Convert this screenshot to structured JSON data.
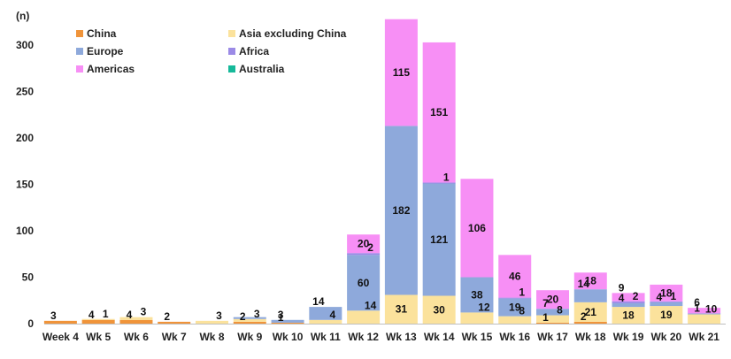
{
  "chart_data": {
    "type": "bar",
    "stacked": true,
    "title": "",
    "xlabel": "",
    "ylabel": "(n)",
    "ylim": [
      0,
      320
    ],
    "yticks": [
      0,
      50,
      100,
      150,
      200,
      250,
      300
    ],
    "grid": false,
    "legend_position": "top-left",
    "categories": [
      "Week 4",
      "Wk 5",
      "Wk 6",
      "Wk 7",
      "Wk 8",
      "Wk 9",
      "Wk 10",
      "Wk 11",
      "Wk 12",
      "Wk 13",
      "Wk 14",
      "Wk 15",
      "Wk 16",
      "Wk 17",
      "Wk 18",
      "Wk 19",
      "Wk 20",
      "Wk 21"
    ],
    "series": [
      {
        "name": "China",
        "color": "#F0943A",
        "values": [
          3,
          4,
          4,
          2,
          0,
          2,
          1,
          0,
          0,
          0,
          0,
          0,
          0,
          1,
          2,
          0,
          0,
          0
        ],
        "labels": [
          "3",
          "4",
          "4",
          "2",
          "",
          "2",
          "1",
          "",
          "",
          "",
          "",
          "",
          "",
          "1",
          "2",
          "",
          "",
          ""
        ]
      },
      {
        "name": "Asia excluding China",
        "color": "#FBE29C",
        "values": [
          0,
          1,
          3,
          0,
          3,
          3,
          0,
          4,
          14,
          31,
          30,
          12,
          8,
          8,
          21,
          18,
          19,
          10
        ],
        "labels": [
          "",
          "1",
          "3",
          "",
          "3",
          "3",
          "",
          "4",
          "14",
          "31",
          "30",
          "12",
          "8",
          "8",
          "21",
          "18",
          "19",
          "10"
        ]
      },
      {
        "name": "Europe",
        "color": "#8EA9DB",
        "values": [
          0,
          0,
          0,
          0,
          0,
          2,
          3,
          14,
          60,
          182,
          121,
          38,
          19,
          7,
          14,
          4,
          4,
          1
        ],
        "labels": [
          "",
          "",
          "",
          "",
          "",
          "",
          "3",
          "14",
          "60",
          "182",
          "121",
          "38",
          "19",
          "7",
          "14",
          "4",
          "4",
          "1"
        ]
      },
      {
        "name": "Africa",
        "color": "#9B8AE6",
        "values": [
          0,
          0,
          0,
          0,
          0,
          0,
          0,
          0,
          2,
          0,
          1,
          0,
          1,
          0,
          0,
          2,
          1,
          0
        ],
        "labels": [
          "",
          "",
          "",
          "",
          "",
          "",
          "",
          "",
          "2",
          "",
          "1",
          "",
          "1",
          "",
          "",
          "2",
          "1",
          ""
        ]
      },
      {
        "name": "Americas",
        "color": "#F78FF5",
        "values": [
          0,
          0,
          0,
          0,
          0,
          0,
          0,
          0,
          20,
          115,
          151,
          106,
          46,
          20,
          18,
          9,
          18,
          6
        ],
        "labels": [
          "",
          "",
          "",
          "",
          "",
          "",
          "",
          "",
          "20",
          "115",
          "151",
          "106",
          "46",
          "20",
          "18",
          "9",
          "18",
          "6"
        ]
      },
      {
        "name": "Australia",
        "color": "#16B99A",
        "values": [
          0,
          0,
          0,
          0,
          0,
          0,
          0,
          0,
          0,
          0,
          0,
          0,
          0,
          0,
          0,
          0,
          0,
          0
        ],
        "labels": [
          "",
          "",
          "",
          "",
          "",
          "",
          "",
          "",
          "",
          "",
          "",
          "",
          "",
          "",
          "",
          "",
          "",
          ""
        ]
      }
    ]
  }
}
